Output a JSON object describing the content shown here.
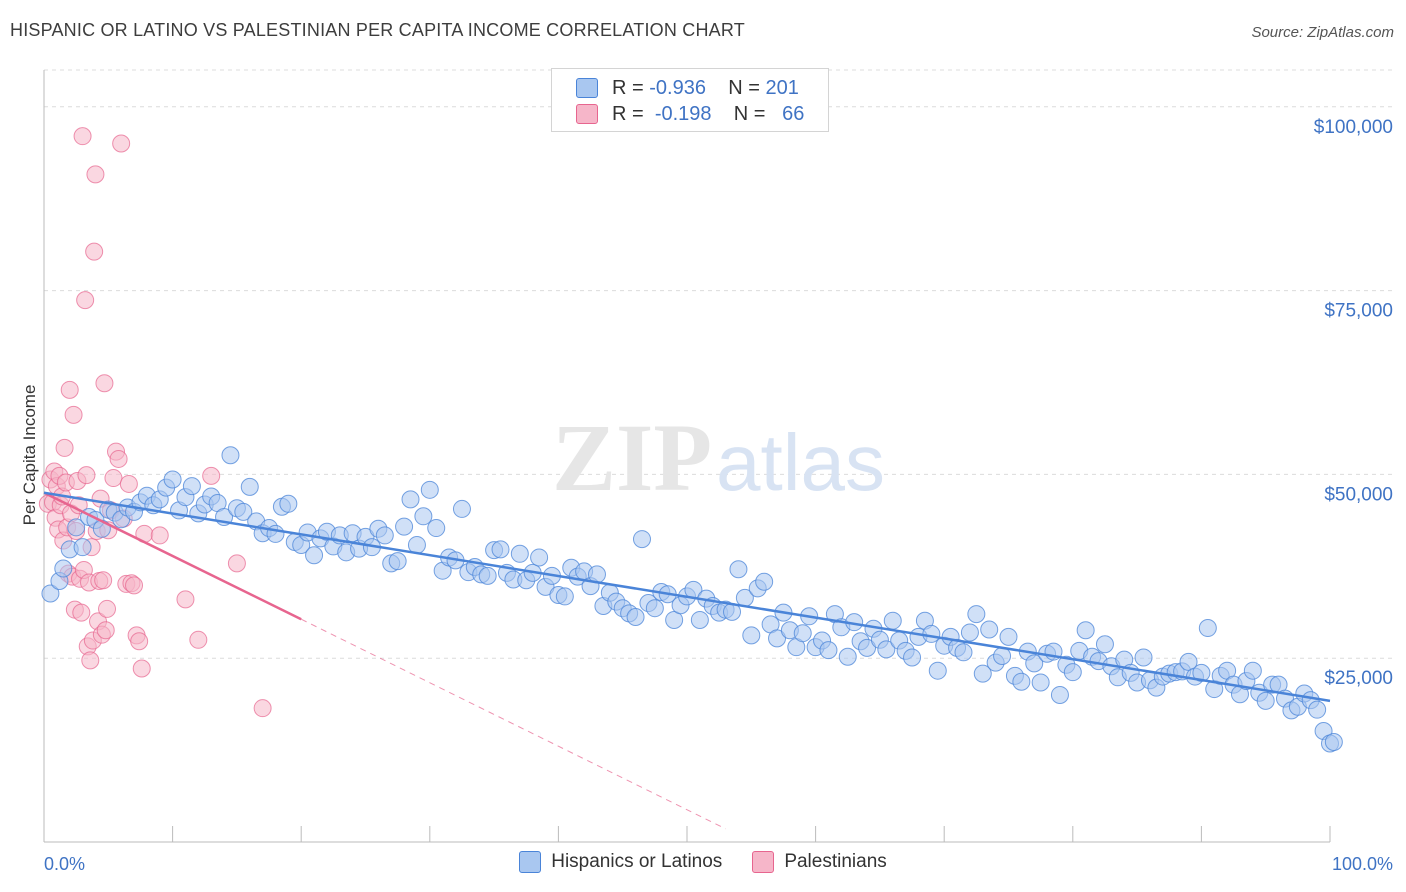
{
  "title": "HISPANIC OR LATINO VS PALESTINIAN PER CAPITA INCOME CORRELATION CHART",
  "source": "Source: ZipAtlas.com",
  "watermark": {
    "zip": "ZIP",
    "atlas": "atlas"
  },
  "legend": {
    "rows": [
      {
        "r_label": "R =",
        "r_value": "-0.936",
        "n_label": "N =",
        "n_value": "201",
        "color": "#a9c7f0"
      },
      {
        "r_label": "R =",
        "r_value": "-0.198",
        "n_label": "N =",
        "n_value": " 66",
        "color": "#f6b6c9"
      }
    ]
  },
  "bottom_legend": [
    {
      "label": "Hispanics or Latinos",
      "color": "#a9c7f0"
    },
    {
      "label": "Palestinians",
      "color": "#f6b6c9"
    }
  ],
  "colors": {
    "blue": "#4a84d8",
    "blue_fill": "#a9c7f0",
    "pink": "#e7658f",
    "pink_fill": "#f6b6c9",
    "axis_text": "#3f73c4"
  },
  "chart_data": {
    "type": "scatter",
    "ylabel": "Per Capita Income",
    "xlabel": "",
    "xlim": [
      0,
      100
    ],
    "ylim": [
      0,
      105000
    ],
    "y_ticks": [
      {
        "value": 25000,
        "label": "$25,000"
      },
      {
        "value": 50000,
        "label": "$50,000"
      },
      {
        "value": 75000,
        "label": "$75,000"
      },
      {
        "value": 100000,
        "label": "$100,000"
      }
    ],
    "x_end_labels": {
      "left": "0.0%",
      "right": "100.0%"
    },
    "grid": true,
    "series": [
      {
        "name": "Hispanics or Latinos",
        "color": "#4a84d8",
        "trend": {
          "x": [
            0,
            100
          ],
          "y": [
            47500,
            19200
          ]
        },
        "points": [
          [
            0.5,
            33800
          ],
          [
            1.2,
            35500
          ],
          [
            1.5,
            37200
          ],
          [
            2,
            39800
          ],
          [
            2.5,
            42800
          ],
          [
            3,
            40100
          ],
          [
            3.5,
            44200
          ],
          [
            4,
            43800
          ],
          [
            4.5,
            42600
          ],
          [
            5,
            45200
          ],
          [
            5.5,
            44800
          ],
          [
            6,
            43900
          ],
          [
            6.5,
            45500
          ],
          [
            7,
            44900
          ],
          [
            7.5,
            46200
          ],
          [
            8,
            47100
          ],
          [
            8.5,
            45800
          ],
          [
            9,
            46600
          ],
          [
            9.5,
            48200
          ],
          [
            10,
            49300
          ],
          [
            10.5,
            45100
          ],
          [
            11,
            46900
          ],
          [
            11.5,
            48400
          ],
          [
            12,
            44700
          ],
          [
            12.5,
            45900
          ],
          [
            13,
            47000
          ],
          [
            13.5,
            46100
          ],
          [
            14,
            44200
          ],
          [
            14.5,
            52600
          ],
          [
            15,
            45400
          ],
          [
            15.5,
            44900
          ],
          [
            16,
            48300
          ],
          [
            16.5,
            43600
          ],
          [
            17,
            42000
          ],
          [
            17.5,
            42700
          ],
          [
            18,
            41900
          ],
          [
            18.5,
            45600
          ],
          [
            19,
            46000
          ],
          [
            19.5,
            40800
          ],
          [
            20,
            40400
          ],
          [
            20.5,
            42100
          ],
          [
            21,
            39000
          ],
          [
            21.5,
            41300
          ],
          [
            22,
            42200
          ],
          [
            22.5,
            40200
          ],
          [
            23,
            41700
          ],
          [
            23.5,
            39400
          ],
          [
            24,
            42000
          ],
          [
            24.5,
            39900
          ],
          [
            25,
            41500
          ],
          [
            25.5,
            40100
          ],
          [
            26,
            42600
          ],
          [
            26.5,
            41700
          ],
          [
            27,
            37900
          ],
          [
            27.5,
            38200
          ],
          [
            28,
            42900
          ],
          [
            28.5,
            46600
          ],
          [
            29,
            40400
          ],
          [
            29.5,
            44300
          ],
          [
            30,
            47900
          ],
          [
            30.5,
            42700
          ],
          [
            31,
            36900
          ],
          [
            31.5,
            38700
          ],
          [
            32,
            38300
          ],
          [
            32.5,
            45300
          ],
          [
            33,
            36700
          ],
          [
            33.5,
            37400
          ],
          [
            34,
            36400
          ],
          [
            34.5,
            36200
          ],
          [
            35,
            39700
          ],
          [
            35.5,
            39800
          ],
          [
            36,
            36600
          ],
          [
            36.5,
            35700
          ],
          [
            37,
            39200
          ],
          [
            37.5,
            35600
          ],
          [
            38,
            36600
          ],
          [
            38.5,
            38700
          ],
          [
            39,
            34700
          ],
          [
            39.5,
            36200
          ],
          [
            40,
            33600
          ],
          [
            40.5,
            33400
          ],
          [
            41,
            37300
          ],
          [
            41.5,
            36100
          ],
          [
            42,
            36800
          ],
          [
            42.5,
            34800
          ],
          [
            43,
            36400
          ],
          [
            43.5,
            32100
          ],
          [
            44,
            33900
          ],
          [
            44.5,
            32700
          ],
          [
            45,
            31800
          ],
          [
            45.5,
            31100
          ],
          [
            46,
            30600
          ],
          [
            46.5,
            41200
          ],
          [
            47,
            32500
          ],
          [
            47.5,
            31800
          ],
          [
            48,
            34000
          ],
          [
            48.5,
            33700
          ],
          [
            49,
            30200
          ],
          [
            49.5,
            32200
          ],
          [
            50,
            33400
          ],
          [
            50.5,
            34300
          ],
          [
            51,
            30200
          ],
          [
            51.5,
            33100
          ],
          [
            52,
            32100
          ],
          [
            52.5,
            31200
          ],
          [
            53,
            31600
          ],
          [
            53.5,
            31300
          ],
          [
            54,
            37100
          ],
          [
            54.5,
            33200
          ],
          [
            55,
            28100
          ],
          [
            55.5,
            34500
          ],
          [
            56,
            35400
          ],
          [
            56.5,
            29600
          ],
          [
            57,
            27700
          ],
          [
            57.5,
            31200
          ],
          [
            58,
            28800
          ],
          [
            58.5,
            26500
          ],
          [
            59,
            28400
          ],
          [
            59.5,
            30700
          ],
          [
            60,
            26500
          ],
          [
            60.5,
            27400
          ],
          [
            61,
            26100
          ],
          [
            61.5,
            31000
          ],
          [
            62,
            29200
          ],
          [
            62.5,
            25200
          ],
          [
            63,
            29900
          ],
          [
            63.5,
            27300
          ],
          [
            64,
            26400
          ],
          [
            64.5,
            29000
          ],
          [
            65,
            27500
          ],
          [
            65.5,
            26200
          ],
          [
            66,
            30100
          ],
          [
            66.5,
            27400
          ],
          [
            67,
            26000
          ],
          [
            67.5,
            25100
          ],
          [
            68,
            27900
          ],
          [
            68.5,
            30100
          ],
          [
            69,
            28300
          ],
          [
            69.5,
            23300
          ],
          [
            70,
            26700
          ],
          [
            70.5,
            27900
          ],
          [
            71,
            26400
          ],
          [
            71.5,
            25800
          ],
          [
            72,
            28500
          ],
          [
            72.5,
            31000
          ],
          [
            73,
            22900
          ],
          [
            73.5,
            28900
          ],
          [
            74,
            24400
          ],
          [
            74.5,
            25300
          ],
          [
            75,
            27900
          ],
          [
            75.5,
            22600
          ],
          [
            76,
            21800
          ],
          [
            76.5,
            25900
          ],
          [
            77,
            24300
          ],
          [
            77.5,
            21700
          ],
          [
            78,
            25600
          ],
          [
            78.5,
            25900
          ],
          [
            79,
            20000
          ],
          [
            79.5,
            24100
          ],
          [
            80,
            23100
          ],
          [
            80.5,
            26000
          ],
          [
            81,
            28800
          ],
          [
            81.5,
            25200
          ],
          [
            82,
            24600
          ],
          [
            82.5,
            26900
          ],
          [
            83,
            23900
          ],
          [
            83.5,
            22400
          ],
          [
            84,
            24800
          ],
          [
            84.5,
            23000
          ],
          [
            85,
            21700
          ],
          [
            85.5,
            25100
          ],
          [
            86,
            22000
          ],
          [
            86.5,
            21000
          ],
          [
            87,
            22500
          ],
          [
            87.5,
            22900
          ],
          [
            88,
            23100
          ],
          [
            88.5,
            23200
          ],
          [
            89,
            24500
          ],
          [
            89.5,
            22500
          ],
          [
            90,
            23000
          ],
          [
            90.5,
            29100
          ],
          [
            91,
            20800
          ],
          [
            91.5,
            22600
          ],
          [
            92,
            23300
          ],
          [
            92.5,
            21400
          ],
          [
            93,
            20100
          ],
          [
            93.5,
            21900
          ],
          [
            94,
            23300
          ],
          [
            94.5,
            20300
          ],
          [
            95,
            19200
          ],
          [
            95.5,
            21400
          ],
          [
            96,
            21400
          ],
          [
            96.5,
            19500
          ],
          [
            97,
            17900
          ],
          [
            97.5,
            18400
          ],
          [
            98,
            20200
          ],
          [
            98.5,
            19300
          ],
          [
            99,
            18000
          ],
          [
            99.5,
            15100
          ],
          [
            100,
            13400
          ],
          [
            100.3,
            13600
          ]
        ]
      },
      {
        "name": "Palestinians",
        "color": "#e7658f",
        "trend": {
          "x": [
            0,
            20
          ],
          "y": [
            47500,
            30300
          ]
        },
        "trend_dashed": {
          "x": [
            20,
            53
          ],
          "y": [
            30300,
            1800
          ]
        },
        "points": [
          [
            0.3,
            46000
          ],
          [
            0.5,
            49300
          ],
          [
            0.7,
            46200
          ],
          [
            0.8,
            50400
          ],
          [
            0.9,
            44100
          ],
          [
            1,
            48400
          ],
          [
            1.1,
            42500
          ],
          [
            1.2,
            49800
          ],
          [
            1.3,
            45800
          ],
          [
            1.4,
            47000
          ],
          [
            1.5,
            41000
          ],
          [
            1.6,
            53600
          ],
          [
            1.7,
            48900
          ],
          [
            1.8,
            42800
          ],
          [
            1.9,
            36500
          ],
          [
            2,
            61500
          ],
          [
            2.1,
            44700
          ],
          [
            2.2,
            36100
          ],
          [
            2.3,
            58100
          ],
          [
            2.4,
            31600
          ],
          [
            2.5,
            42300
          ],
          [
            2.6,
            49100
          ],
          [
            2.7,
            45800
          ],
          [
            2.8,
            35800
          ],
          [
            2.9,
            31200
          ],
          [
            3,
            96000
          ],
          [
            3.1,
            37000
          ],
          [
            3.2,
            73700
          ],
          [
            3.3,
            49900
          ],
          [
            3.4,
            26600
          ],
          [
            3.5,
            35300
          ],
          [
            3.6,
            24700
          ],
          [
            3.7,
            40100
          ],
          [
            3.8,
            27400
          ],
          [
            3.9,
            80300
          ],
          [
            4,
            90800
          ],
          [
            4.1,
            42300
          ],
          [
            4.2,
            30000
          ],
          [
            4.3,
            35500
          ],
          [
            4.4,
            46700
          ],
          [
            4.5,
            28200
          ],
          [
            4.6,
            35600
          ],
          [
            4.7,
            62400
          ],
          [
            4.8,
            28800
          ],
          [
            4.9,
            31700
          ],
          [
            5,
            42400
          ],
          [
            5.2,
            45100
          ],
          [
            5.4,
            49500
          ],
          [
            5.6,
            53100
          ],
          [
            5.8,
            52100
          ],
          [
            6,
            95000
          ],
          [
            6.2,
            44000
          ],
          [
            6.4,
            35100
          ],
          [
            6.6,
            48700
          ],
          [
            6.8,
            35200
          ],
          [
            7,
            34900
          ],
          [
            7.2,
            28100
          ],
          [
            7.4,
            27300
          ],
          [
            7.6,
            23600
          ],
          [
            7.8,
            41900
          ],
          [
            9,
            41700
          ],
          [
            11,
            33000
          ],
          [
            12,
            27500
          ],
          [
            13,
            49800
          ],
          [
            15,
            37900
          ],
          [
            17,
            18200
          ]
        ]
      }
    ]
  }
}
